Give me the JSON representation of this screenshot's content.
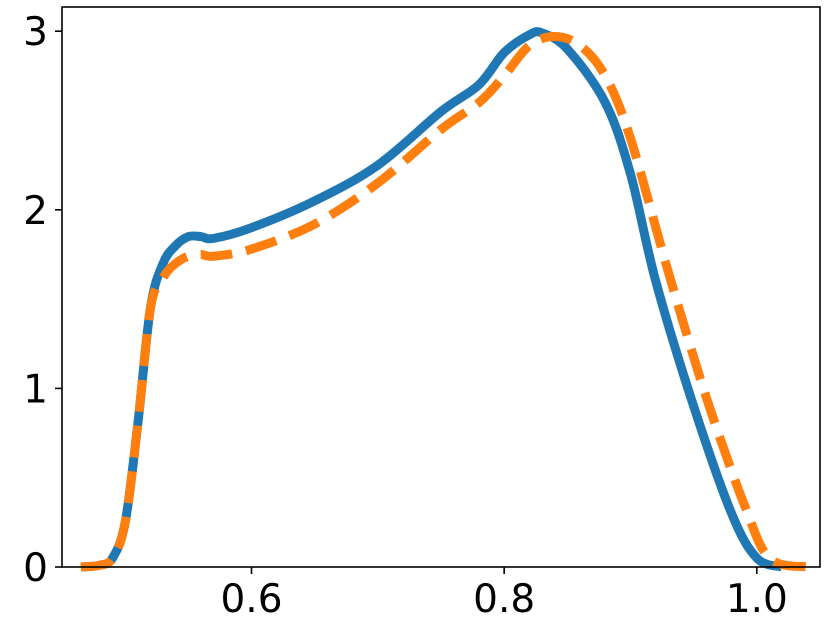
{
  "chart_data": {
    "type": "line",
    "title": "",
    "xlabel": "",
    "ylabel": "",
    "xlim": [
      0.45,
      1.05
    ],
    "ylim": [
      0,
      3.2
    ],
    "xticks": [
      0.6,
      0.8,
      1.0
    ],
    "xtick_labels": [
      "0.6",
      "0.8",
      "1.0"
    ],
    "yticks": [
      0,
      1,
      2,
      3
    ],
    "ytick_labels": [
      "0",
      "1",
      "2",
      "3"
    ],
    "grid": false,
    "legend": "none",
    "series": [
      {
        "color": "#1f77b4",
        "style": "solid",
        "x": [
          0.465,
          0.48,
          0.49,
          0.5,
          0.51,
          0.52,
          0.53,
          0.54,
          0.55,
          0.56,
          0.57,
          0.6,
          0.65,
          0.7,
          0.75,
          0.78,
          0.8,
          0.82,
          0.83,
          0.85,
          0.88,
          0.9,
          0.92,
          0.95,
          0.98,
          1.0,
          1.02
        ],
        "y": [
          0.0,
          0.01,
          0.05,
          0.25,
          0.8,
          1.45,
          1.7,
          1.8,
          1.85,
          1.85,
          1.84,
          1.9,
          2.05,
          2.25,
          2.55,
          2.7,
          2.88,
          2.98,
          2.99,
          2.9,
          2.6,
          2.2,
          1.6,
          0.9,
          0.3,
          0.05,
          0.0
        ]
      },
      {
        "color": "#ff7f0e",
        "style": "dashed",
        "x": [
          0.465,
          0.48,
          0.49,
          0.5,
          0.51,
          0.52,
          0.53,
          0.54,
          0.55,
          0.56,
          0.57,
          0.6,
          0.65,
          0.7,
          0.75,
          0.78,
          0.8,
          0.82,
          0.84,
          0.86,
          0.88,
          0.9,
          0.93,
          0.96,
          0.99,
          1.01,
          1.04
        ],
        "y": [
          0.0,
          0.01,
          0.05,
          0.25,
          0.8,
          1.45,
          1.62,
          1.7,
          1.74,
          1.75,
          1.74,
          1.78,
          1.92,
          2.15,
          2.45,
          2.6,
          2.75,
          2.92,
          2.97,
          2.92,
          2.75,
          2.4,
          1.65,
          0.95,
          0.35,
          0.05,
          0.0
        ]
      }
    ]
  }
}
